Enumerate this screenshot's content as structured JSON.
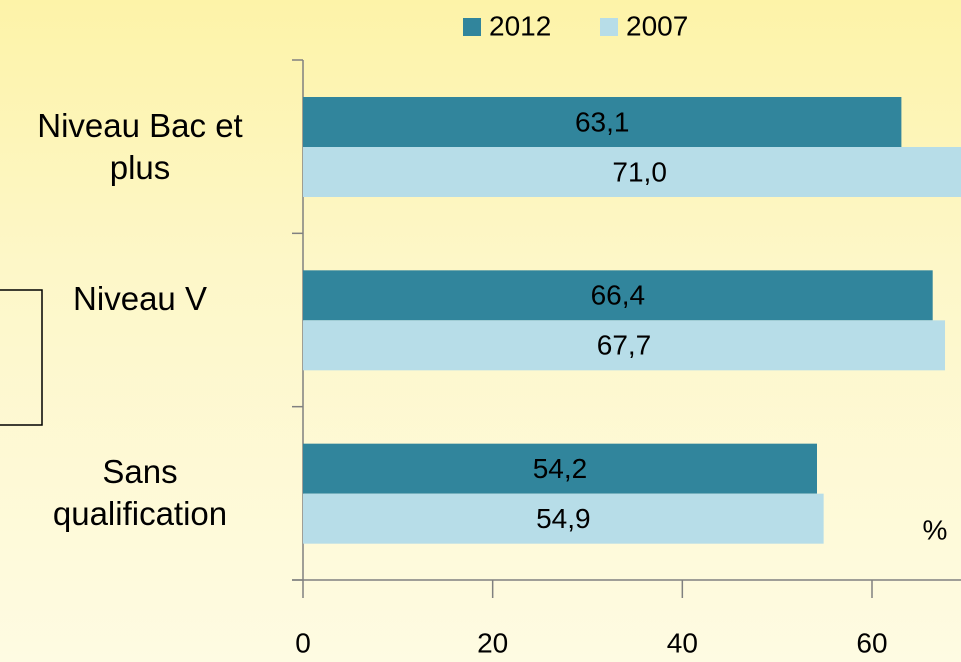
{
  "chart_data": {
    "type": "barh",
    "categories": [
      "Niveau Bac et plus",
      "Niveau V",
      "Sans qualification"
    ],
    "series": [
      {
        "name": "2012",
        "color": "#31859c",
        "values": [
          63.1,
          66.4,
          54.2
        ],
        "value_labels": [
          "63,1",
          "66,4",
          "54,2"
        ]
      },
      {
        "name": "2007",
        "color": "#b7dde8",
        "values": [
          71.0,
          67.7,
          54.9
        ],
        "value_labels": [
          "71,0",
          "67,7",
          "54,9"
        ]
      }
    ],
    "xlim": [
      0,
      80
    ],
    "xticks": [
      0,
      20,
      40,
      60
    ],
    "annotation": "%",
    "legend": "top"
  }
}
